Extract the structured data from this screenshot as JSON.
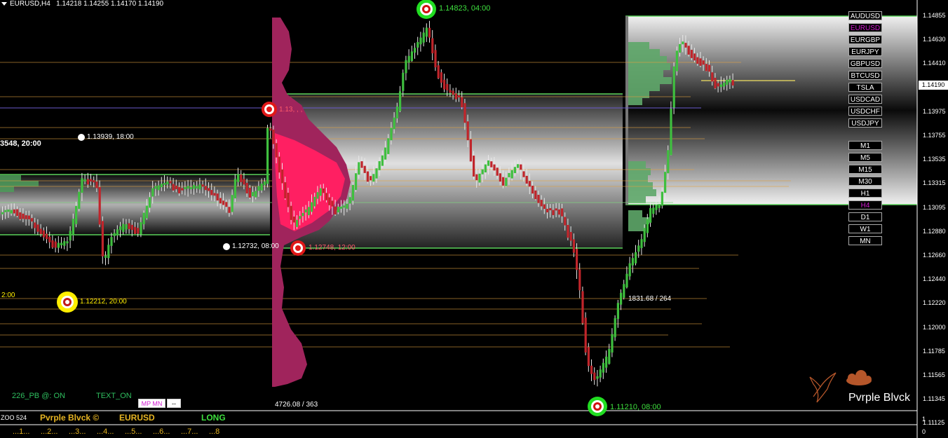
{
  "header": {
    "symbol_tf": "EURUSD,H4",
    "ohlc": "1.14218 1.14255 1.14170 1.14190"
  },
  "price_axis": {
    "labels": [
      "1.14855",
      "1.14630",
      "1.14410",
      "1.14190",
      "1.13975",
      "1.13755",
      "1.13535",
      "1.13315",
      "1.13095",
      "1.12880",
      "1.12660",
      "1.12440",
      "1.12220",
      "1.12000",
      "1.11785",
      "1.11565",
      "1.11345",
      "1.11125"
    ],
    "current": "1.14190"
  },
  "symbols": [
    "AUDUSD",
    "EURUSD",
    "EURGBP",
    "EURJPY",
    "GBPUSD",
    "BTCUSD",
    "TSLA",
    "USDCAD",
    "USDCHF",
    "USDJPY"
  ],
  "symbols_active": "EURUSD",
  "timeframes": [
    "M1",
    "M5",
    "M15",
    "M30",
    "H1",
    "H4",
    "D1",
    "W1",
    "MN"
  ],
  "timeframes_active": "H4",
  "annotations": {
    "top_pivot": "1.14823, 04:00",
    "bottom_pivot": "1.11210, 08:00",
    "red_high": "1.13,  ,  ,",
    "red_low": "1.12748, 12:00",
    "white_high": "1.13939, 18:00",
    "white_low": "1.12732, 08:00",
    "yellow_low": "1.12212, 20:00",
    "left_label": "3548, 20:00",
    "left_small": "2:00",
    "vol_left": "4726.08 / 363",
    "vol_right": "1831.68 / 264"
  },
  "status": {
    "pb": "226_PB @: ON",
    "text_on": "TEXT_ON",
    "mp_button": "MP MN",
    "dash_button": "--"
  },
  "bottom_bar": {
    "zoo": "ZOO 524",
    "brand": "Pvrple Blvck ©",
    "symbol": "EURUSD",
    "signal": "LONG",
    "dots": [
      "...1...",
      "...2...",
      "...3...",
      "...4...",
      "...5...",
      "...6...",
      "...7...",
      "...8"
    ],
    "right_top": "1",
    "right_bot": "0"
  },
  "logo": {
    "text": "Pvrple Blvck"
  },
  "colors": {
    "bull": "#3fbf3f",
    "bear": "#c0252b",
    "accent": "#d21bd2",
    "gold": "#e6b422"
  }
}
